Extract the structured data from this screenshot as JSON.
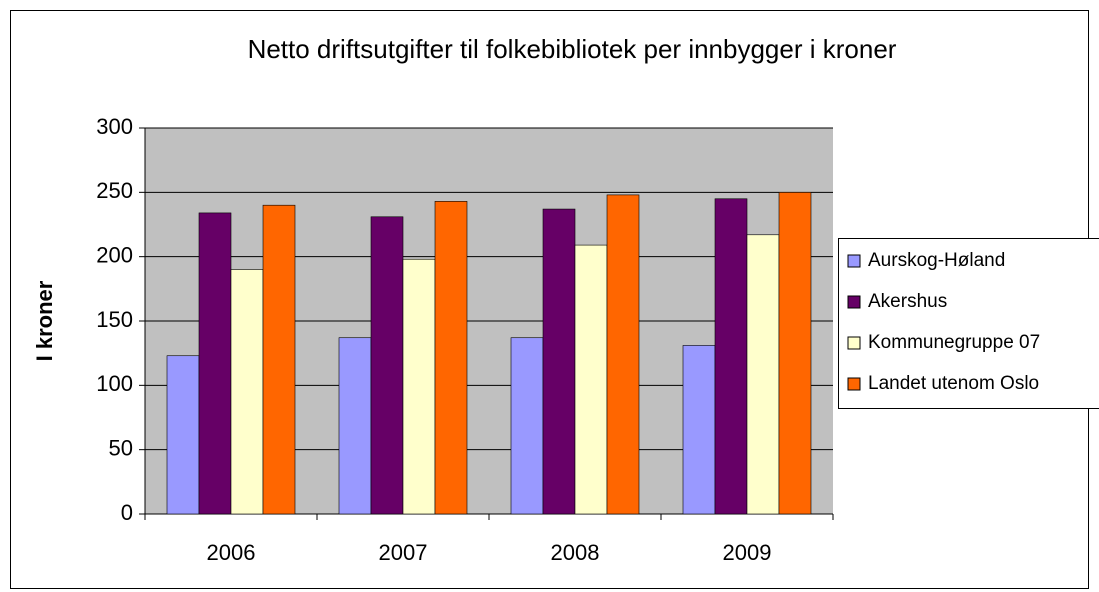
{
  "chart_data": {
    "type": "bar",
    "title": "Netto driftsutgifter til folkebibliotek per innbygger i kroner",
    "y_label": "I kroner",
    "categories": [
      "2006",
      "2007",
      "2008",
      "2009"
    ],
    "series": [
      {
        "name": "Aurskog-Høland",
        "color": "#9999ff",
        "values": [
          123,
          137,
          137,
          131
        ]
      },
      {
        "name": "Akershus",
        "color": "#660066",
        "values": [
          234,
          231,
          237,
          245
        ]
      },
      {
        "name": "Kommunegruppe 07",
        "color": "#ffffcc",
        "values": [
          190,
          198,
          209,
          217
        ]
      },
      {
        "name": "Landet utenom Oslo",
        "color": "#ff6600",
        "values": [
          240,
          243,
          248,
          250
        ]
      }
    ],
    "ylim": [
      0,
      300
    ],
    "yticks": [
      0,
      50,
      100,
      150,
      200,
      250,
      300
    ],
    "grid": true,
    "legend": "right"
  }
}
